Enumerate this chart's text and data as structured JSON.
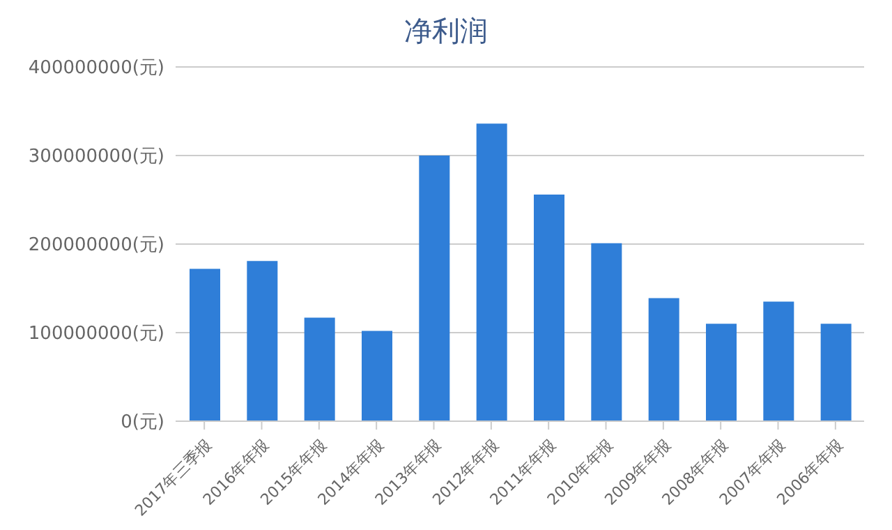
{
  "chart_data": {
    "type": "bar",
    "title": "净利润",
    "categories": [
      "2017年三季报",
      "2016年年报",
      "2015年年报",
      "2014年年报",
      "2013年年报",
      "2012年年报",
      "2011年年报",
      "2010年年报",
      "2009年年报",
      "2008年年报",
      "2007年年报",
      "2006年年报"
    ],
    "values": [
      172000000,
      181000000,
      117000000,
      102000000,
      300000000,
      336000000,
      256000000,
      201000000,
      139000000,
      110000000,
      135000000,
      110000000
    ],
    "color": "#2f7ed8",
    "ylim": [
      0,
      400000000
    ],
    "yticks": [
      {
        "value": 0,
        "label": "0(元)"
      },
      {
        "value": 100000000,
        "label": "100000000(元)"
      },
      {
        "value": 200000000,
        "label": "200000000(元)"
      },
      {
        "value": 300000000,
        "label": "300000000(元)"
      },
      {
        "value": 400000000,
        "label": "400000000(元)"
      }
    ],
    "grid": "y"
  }
}
